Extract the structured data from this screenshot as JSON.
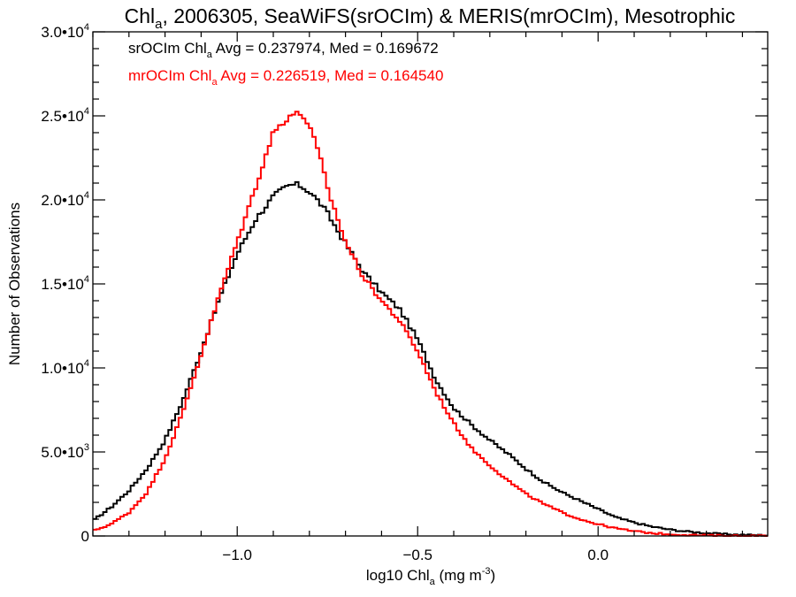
{
  "chart_data": {
    "type": "line",
    "title": "Chla, 2006305, SeaWiFS(srOClm) & MERIS(mrOClm), Mesotrophic",
    "title_parts": {
      "base": "Chl",
      "sub": "a",
      "rest": ", 2006305, SeaWiFS(srOCIm) & MERIS(mrOCIm), Mesotrophic"
    },
    "xlabel_parts": {
      "base": "log10 Chl",
      "sub": "a",
      "unit": " (mg m",
      "sup": "-3",
      "close": ")"
    },
    "ylabel": "Number of Observations",
    "xlim": [
      -1.4,
      0.47
    ],
    "ylim": [
      0,
      30000
    ],
    "x_ticks": [
      {
        "value": -1.0,
        "label": "−1.0"
      },
      {
        "value": -0.5,
        "label": "−0.5"
      },
      {
        "value": 0.0,
        "label": "0.0"
      }
    ],
    "y_ticks": [
      {
        "value": 0,
        "mant": "0",
        "exp": ""
      },
      {
        "value": 5000,
        "mant": "5.0•10",
        "exp": "3"
      },
      {
        "value": 10000,
        "mant": "1.0•10",
        "exp": "4"
      },
      {
        "value": 15000,
        "mant": "1.5•10",
        "exp": "4"
      },
      {
        "value": 20000,
        "mant": "2.0•10",
        "exp": "4"
      },
      {
        "value": 25000,
        "mant": "2.5•10",
        "exp": "4"
      },
      {
        "value": 30000,
        "mant": "3.0•10",
        "exp": "4"
      }
    ],
    "grid": false,
    "step_style": "histogram",
    "series": [
      {
        "name": "srOClm",
        "color": "#000000",
        "annotation": {
          "base": "srOCIm Chl",
          "sub": "a",
          "rest": " Avg = 0.237974, Med = 0.169672"
        },
        "x": [
          -1.4,
          -1.35,
          -1.3,
          -1.25,
          -1.2,
          -1.15,
          -1.1,
          -1.05,
          -1.0,
          -0.95,
          -0.9,
          -0.87,
          -0.85,
          -0.83,
          -0.8,
          -0.77,
          -0.75,
          -0.7,
          -0.65,
          -0.6,
          -0.55,
          -0.5,
          -0.45,
          -0.4,
          -0.35,
          -0.3,
          -0.25,
          -0.2,
          -0.15,
          -0.1,
          -0.05,
          0.0,
          0.05,
          0.1,
          0.15,
          0.2,
          0.25,
          0.3,
          0.35,
          0.4,
          0.47
        ],
        "y": [
          900,
          1700,
          2700,
          4000,
          5700,
          8100,
          11000,
          14100,
          16800,
          18800,
          20200,
          20700,
          20900,
          20900,
          20500,
          19800,
          19200,
          17400,
          15700,
          14500,
          13500,
          11700,
          9300,
          7600,
          6600,
          5700,
          4900,
          4000,
          3200,
          2600,
          2100,
          1600,
          1100,
          800,
          550,
          380,
          260,
          170,
          110,
          70,
          40
        ]
      },
      {
        "name": "mrOClm",
        "color": "#ff0000",
        "annotation": {
          "base": "mrOCIm Chl",
          "sub": "a",
          "rest": " Avg = 0.226519, Med = 0.164540"
        },
        "x": [
          -1.4,
          -1.35,
          -1.3,
          -1.25,
          -1.2,
          -1.15,
          -1.1,
          -1.05,
          -1.0,
          -0.95,
          -0.92,
          -0.9,
          -0.87,
          -0.85,
          -0.82,
          -0.8,
          -0.77,
          -0.75,
          -0.7,
          -0.65,
          -0.6,
          -0.55,
          -0.5,
          -0.45,
          -0.4,
          -0.35,
          -0.3,
          -0.25,
          -0.2,
          -0.15,
          -0.1,
          -0.05,
          0.0,
          0.05,
          0.1,
          0.15,
          0.2,
          0.25,
          0.3,
          0.35,
          0.4,
          0.47
        ],
        "y": [
          300,
          700,
          1400,
          2600,
          4600,
          7400,
          10800,
          14300,
          17500,
          20700,
          22700,
          24000,
          24700,
          25100,
          25100,
          24400,
          22500,
          20700,
          17500,
          15400,
          14000,
          12800,
          11000,
          8600,
          6700,
          5200,
          4200,
          3300,
          2500,
          1900,
          1400,
          1000,
          700,
          450,
          280,
          170,
          100,
          60,
          35,
          20,
          10,
          5
        ]
      }
    ]
  }
}
